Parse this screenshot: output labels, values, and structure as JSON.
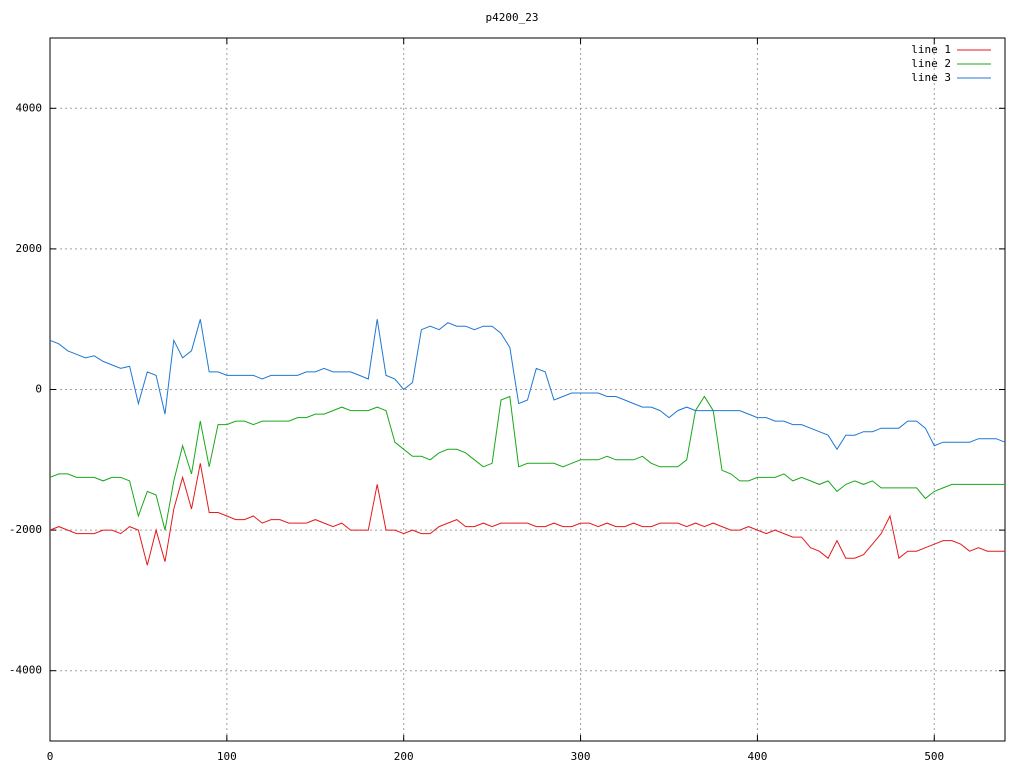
{
  "chart_data": {
    "type": "line",
    "title": "p4200_23",
    "x": [
      0,
      5,
      10,
      15,
      20,
      25,
      30,
      35,
      40,
      45,
      50,
      55,
      60,
      65,
      70,
      75,
      80,
      85,
      90,
      95,
      100,
      105,
      110,
      115,
      120,
      125,
      130,
      135,
      140,
      145,
      150,
      155,
      160,
      165,
      170,
      175,
      180,
      185,
      190,
      195,
      200,
      205,
      210,
      215,
      220,
      225,
      230,
      235,
      240,
      245,
      250,
      255,
      260,
      265,
      270,
      275,
      280,
      285,
      290,
      295,
      300,
      305,
      310,
      315,
      320,
      325,
      330,
      335,
      340,
      345,
      350,
      355,
      360,
      365,
      370,
      375,
      380,
      385,
      390,
      395,
      400,
      405,
      410,
      415,
      420,
      425,
      430,
      435,
      440,
      445,
      450,
      455,
      460,
      465,
      470,
      475,
      480,
      485,
      490,
      495,
      500,
      505,
      510,
      515,
      520,
      525,
      530,
      535,
      540
    ],
    "series": [
      {
        "name": "line 1",
        "color": "#e41a1c",
        "values": [
          -2000,
          -1950,
          -2000,
          -2050,
          -2050,
          -2050,
          -2000,
          -2000,
          -2050,
          -1950,
          -2000,
          -2500,
          -2000,
          -2450,
          -1700,
          -1250,
          -1700,
          -1050,
          -1750,
          -1750,
          -1800,
          -1850,
          -1850,
          -1800,
          -1900,
          -1850,
          -1850,
          -1900,
          -1900,
          -1900,
          -1850,
          -1900,
          -1950,
          -1900,
          -2000,
          -2000,
          -2000,
          -1350,
          -2000,
          -2000,
          -2050,
          -2000,
          -2050,
          -2050,
          -1950,
          -1900,
          -1850,
          -1950,
          -1950,
          -1900,
          -1950,
          -1900,
          -1900,
          -1900,
          -1900,
          -1950,
          -1950,
          -1900,
          -1950,
          -1950,
          -1900,
          -1900,
          -1950,
          -1900,
          -1950,
          -1950,
          -1900,
          -1950,
          -1950,
          -1900,
          -1900,
          -1900,
          -1950,
          -1900,
          -1950,
          -1900,
          -1950,
          -2000,
          -2000,
          -1950,
          -2000,
          -2050,
          -2000,
          -2050,
          -2100,
          -2100,
          -2250,
          -2300,
          -2400,
          -2150,
          -2400,
          -2400,
          -2350,
          -2200,
          -2050,
          -1800,
          -2400,
          -2300,
          -2300,
          -2250,
          -2200,
          -2150,
          -2150,
          -2200,
          -2300,
          -2250,
          -2300,
          -2300,
          -2300
        ]
      },
      {
        "name": "line 2",
        "color": "#1aa81a",
        "values": [
          -1250,
          -1200,
          -1200,
          -1250,
          -1250,
          -1250,
          -1300,
          -1250,
          -1250,
          -1300,
          -1800,
          -1450,
          -1500,
          -2000,
          -1300,
          -800,
          -1200,
          -450,
          -1100,
          -500,
          -500,
          -450,
          -450,
          -500,
          -450,
          -450,
          -450,
          -450,
          -400,
          -400,
          -350,
          -350,
          -300,
          -250,
          -300,
          -300,
          -300,
          -250,
          -300,
          -750,
          -850,
          -950,
          -950,
          -1000,
          -900,
          -850,
          -850,
          -900,
          -1000,
          -1100,
          -1050,
          -150,
          -100,
          -1100,
          -1050,
          -1050,
          -1050,
          -1050,
          -1100,
          -1050,
          -1000,
          -1000,
          -1000,
          -950,
          -1000,
          -1000,
          -1000,
          -950,
          -1050,
          -1100,
          -1100,
          -1100,
          -1000,
          -300,
          -100,
          -300,
          -1150,
          -1200,
          -1300,
          -1300,
          -1250,
          -1250,
          -1250,
          -1200,
          -1300,
          -1250,
          -1300,
          -1350,
          -1300,
          -1450,
          -1350,
          -1300,
          -1350,
          -1300,
          -1400,
          -1400,
          -1400,
          -1400,
          -1400,
          -1550,
          -1450,
          -1400,
          -1350,
          -1350,
          -1350,
          -1350,
          -1350,
          -1350,
          -1350
        ]
      },
      {
        "name": "line 3",
        "color": "#1f78d4",
        "values": [
          700,
          650,
          550,
          500,
          450,
          480,
          400,
          350,
          300,
          330,
          -200,
          250,
          200,
          -350,
          700,
          450,
          550,
          1000,
          250,
          250,
          200,
          200,
          200,
          200,
          150,
          200,
          200,
          200,
          200,
          250,
          250,
          300,
          250,
          250,
          250,
          200,
          150,
          1000,
          200,
          150,
          0,
          100,
          850,
          900,
          850,
          950,
          900,
          900,
          850,
          900,
          900,
          800,
          600,
          -200,
          -150,
          300,
          250,
          -150,
          -100,
          -50,
          -50,
          -50,
          -50,
          -100,
          -100,
          -150,
          -200,
          -250,
          -250,
          -300,
          -400,
          -300,
          -250,
          -300,
          -300,
          -300,
          -300,
          -300,
          -300,
          -350,
          -400,
          -400,
          -450,
          -450,
          -500,
          -500,
          -550,
          -600,
          -650,
          -850,
          -650,
          -650,
          -600,
          -600,
          -550,
          -550,
          -550,
          -450,
          -450,
          -550,
          -800,
          -750,
          -750,
          -750,
          -750,
          -700,
          -700,
          -700,
          -750
        ]
      }
    ],
    "xlim": [
      0,
      540
    ],
    "ylim": [
      -5000,
      5000
    ],
    "xticks": [
      0,
      100,
      200,
      300,
      400,
      500
    ],
    "yticks": [
      -4000,
      -2000,
      0,
      2000,
      4000
    ],
    "grid": true,
    "legend": "upper right"
  }
}
